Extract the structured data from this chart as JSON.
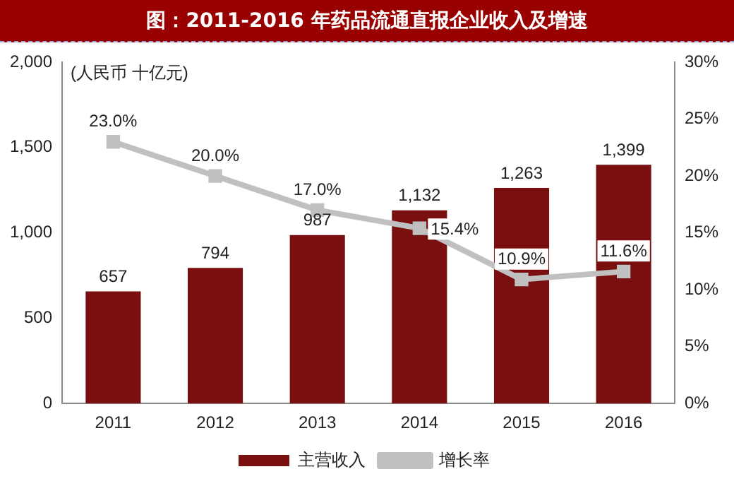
{
  "chart_data": {
    "type": "bar",
    "title": "图：2011-2016 年药品流通直报企业收入及增速",
    "annotations": [
      "(人民币 十亿元)"
    ],
    "categories": [
      "2011",
      "2012",
      "2013",
      "2014",
      "2015",
      "2016"
    ],
    "series": [
      {
        "name": "主营收入",
        "color": "#7a0f0f",
        "values": [
          657,
          794,
          987,
          1132,
          1263,
          1399
        ],
        "value_labels": [
          "657",
          "794",
          "987",
          "1,132",
          "1,263",
          "1,399"
        ]
      },
      {
        "name": "增长率",
        "type": "line",
        "axis": "y2",
        "color": "#c0c0c0",
        "marker": "square",
        "values": [
          23.0,
          20.0,
          17.0,
          15.4,
          10.9,
          11.6
        ],
        "value_labels": [
          "23.0%",
          "20.0%",
          "17.0%",
          "15.4%",
          "10.9%",
          "11.6%"
        ]
      }
    ],
    "ylim": [
      0,
      2000
    ],
    "yticks": [
      0,
      500,
      {
        "value": 1000,
        "label": "1,000"
      },
      {
        "value": 1500,
        "label": "1,500"
      },
      {
        "value": 2000,
        "label": "2,000"
      }
    ],
    "y2lim": [
      0,
      30
    ],
    "y2ticks": [
      {
        "value": 0,
        "label": "0%"
      },
      {
        "value": 5,
        "label": "5%"
      },
      {
        "value": 10,
        "label": "10%"
      },
      {
        "value": 15,
        "label": "15%"
      },
      {
        "value": 20,
        "label": "20%"
      },
      {
        "value": 25,
        "label": "25%"
      },
      {
        "value": 30,
        "label": "30%"
      }
    ],
    "grid": false,
    "legend": "bottom"
  }
}
